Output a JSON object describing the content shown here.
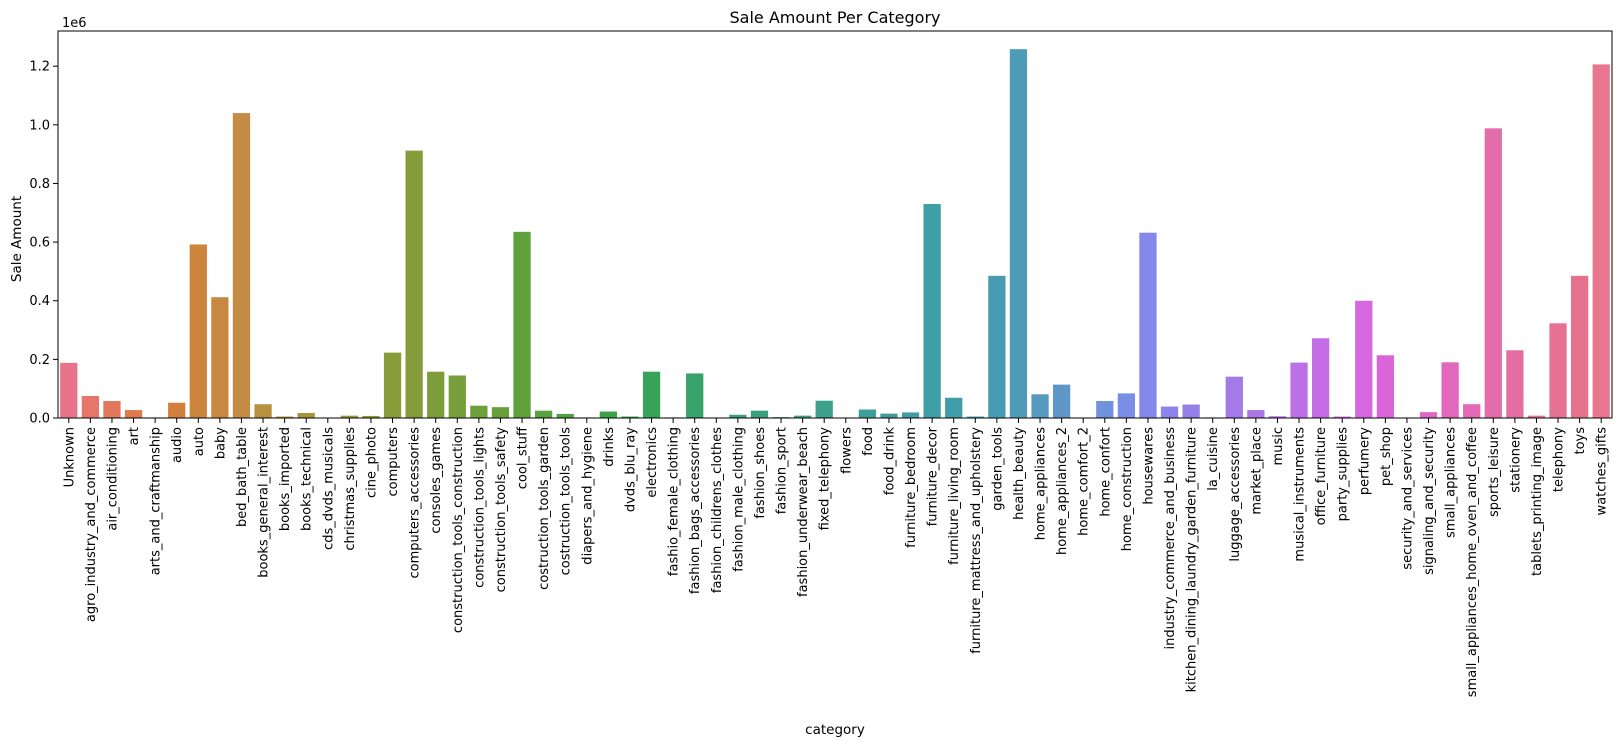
{
  "chart_data": {
    "type": "bar",
    "title": "Sale Amount Per Category",
    "xlabel": "category",
    "ylabel": "Sale Amount",
    "y_offset_text": "1e6",
    "ylim": [
      0,
      1320000
    ],
    "yticks": [
      0,
      200000,
      400000,
      600000,
      800000,
      1000000,
      1200000
    ],
    "ytick_labels": [
      "0.0",
      "0.2",
      "0.4",
      "0.6",
      "0.8",
      "1.0",
      "1.2"
    ],
    "grid": false,
    "legend": "none",
    "categories": [
      "Unknown",
      "agro_industry_and_commerce",
      "air_conditioning",
      "art",
      "arts_and_craftmanship",
      "audio",
      "auto",
      "baby",
      "bed_bath_table",
      "books_general_interest",
      "books_imported",
      "books_technical",
      "cds_dvds_musicals",
      "christmas_supplies",
      "cine_photo",
      "computers",
      "computers_accessories",
      "consoles_games",
      "construction_tools_construction",
      "construction_tools_lights",
      "construction_tools_safety",
      "cool_stuff",
      "costruction_tools_garden",
      "costruction_tools_tools",
      "diapers_and_hygiene",
      "drinks",
      "dvds_blu_ray",
      "electronics",
      "fashio_female_clothing",
      "fashion_bags_accessories",
      "fashion_childrens_clothes",
      "fashion_male_clothing",
      "fashion_shoes",
      "fashion_sport",
      "fashion_underwear_beach",
      "fixed_telephony",
      "flowers",
      "food",
      "food_drink",
      "furniture_bedroom",
      "furniture_decor",
      "furniture_living_room",
      "furniture_mattress_and_upholstery",
      "garden_tools",
      "health_beauty",
      "home_appliances",
      "home_appliances_2",
      "home_comfort_2",
      "home_confort",
      "home_construction",
      "housewares",
      "industry_commerce_and_business",
      "kitchen_dining_laundry_garden_furniture",
      "la_cuisine",
      "luggage_accessories",
      "market_place",
      "music",
      "musical_instruments",
      "office_furniture",
      "party_supplies",
      "perfumery",
      "pet_shop",
      "security_and_services",
      "signaling_and_security",
      "small_appliances",
      "small_appliances_home_oven_and_coffee",
      "sports_leisure",
      "stationery",
      "tablets_printing_image",
      "telephony",
      "toys",
      "watches_gifts"
    ],
    "values": [
      188000,
      75000,
      58000,
      27000,
      2000,
      52000,
      592000,
      412000,
      1040000,
      47000,
      5000,
      17000,
      1000,
      8000,
      7000,
      223000,
      912000,
      158000,
      145000,
      42000,
      37000,
      635000,
      25000,
      14000,
      2000,
      22000,
      5000,
      158000,
      2000,
      152000,
      1000,
      11000,
      25000,
      3000,
      8000,
      59000,
      1000,
      29000,
      15000,
      19000,
      730000,
      69000,
      5000,
      485000,
      1258000,
      81000,
      114000,
      1000,
      58000,
      84000,
      632000,
      39000,
      46000,
      2000,
      141000,
      27000,
      6000,
      189000,
      272000,
      5000,
      400000,
      214000,
      1000,
      20000,
      190000,
      47000,
      988000,
      231000,
      8000,
      323000,
      485000,
      1206000
    ],
    "colors": [
      "#e8748a",
      "#e6766b",
      "#e2775c",
      "#e0794d",
      "#d97c45",
      "#d3803f",
      "#cd843d",
      "#c98840",
      "#c48b44",
      "#b8913f",
      "#af933d",
      "#a6953c",
      "#9f973c",
      "#99983b",
      "#92993b",
      "#8a9b3a",
      "#849c3a",
      "#7d9d3a",
      "#779e3a",
      "#6f9f3a",
      "#68a03a",
      "#5fa13b",
      "#57a23d",
      "#4ea340",
      "#45a343",
      "#3ba347",
      "#36a34f",
      "#37a25a",
      "#37a263",
      "#38a26b",
      "#38a271",
      "#39a177",
      "#3aa17c",
      "#3ba181",
      "#3ba086",
      "#3ca08c",
      "#3c9f92",
      "#3d9f97",
      "#3e9e9c",
      "#3f9ea1",
      "#409ea6",
      "#419daa",
      "#439dae",
      "#479cb3",
      "#4e9bb8",
      "#579ac0",
      "#5f98c8",
      "#6996d2",
      "#7192dd",
      "#7a8ee6",
      "#8388ea",
      "#8b84ea",
      "#9380e9",
      "#9b7be9",
      "#a37ae8",
      "#ab76e7",
      "#b374e6",
      "#bc70e6",
      "#c46de5",
      "#cd6ae3",
      "#d567e0",
      "#dc64d9",
      "#df66cf",
      "#e067c4",
      "#e168bc",
      "#e26ab4",
      "#e36cab",
      "#e46ea3",
      "#e5709b",
      "#e67293",
      "#e6738e",
      "#e8768f"
    ]
  }
}
